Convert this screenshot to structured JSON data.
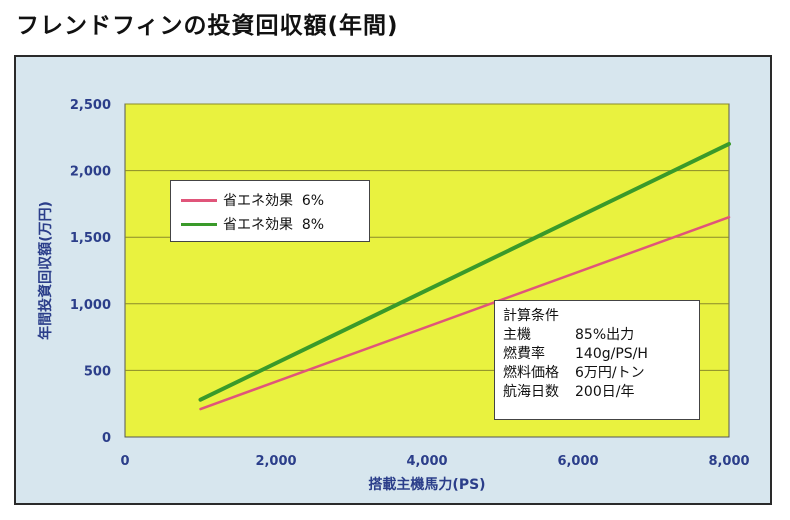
{
  "page": {
    "title": "フレンドフィンの投資回収額(年間)"
  },
  "colors": {
    "plot_background": "#e9f23f",
    "frame_background": "#d7e6ee",
    "gridline": "#8a8a2a",
    "series_6": "#e0557a",
    "series_8": "#3a9a2a",
    "axis_text": "#2b3e8a"
  },
  "chart_data": {
    "type": "line",
    "title": "フレンドフィンの投資回収額(年間)",
    "xlabel": "搭載主機馬力(PS)",
    "ylabel": "年間投資回収額(万円)",
    "xlim": [
      0,
      8000
    ],
    "ylim": [
      0,
      2500
    ],
    "xticks": [
      0,
      2000,
      4000,
      6000,
      8000
    ],
    "xtick_labels": [
      "0",
      "2,000",
      "4,000",
      "6,000",
      "8,000"
    ],
    "yticks": [
      0,
      500,
      1000,
      1500,
      2000,
      2500
    ],
    "ytick_labels": [
      "0",
      "500",
      "1,000",
      "1,500",
      "2,000",
      "2,500"
    ],
    "grid": true,
    "legend_position": "top-left",
    "series": [
      {
        "name": "省エネ効果 6%",
        "color": "#e0557a",
        "x": [
          1000,
          8000
        ],
        "y": [
          210,
          1650
        ]
      },
      {
        "name": "省エネ効果 8%",
        "color": "#3a9a2a",
        "x": [
          1000,
          8000
        ],
        "y": [
          280,
          2200
        ]
      }
    ]
  },
  "legend": {
    "items": [
      {
        "label": "省エネ効果  6%",
        "color": "#e0557a"
      },
      {
        "label": "省エネ効果  8%",
        "color": "#3a9a2a"
      }
    ]
  },
  "conditions": {
    "heading": "計算条件",
    "rows": [
      {
        "label": "主機",
        "value": "85%出力"
      },
      {
        "label": "燃費率",
        "value": "140g/PS/H"
      },
      {
        "label": "燃料価格",
        "value": "6万円/トン"
      },
      {
        "label": "航海日数",
        "value": "200日/年"
      }
    ]
  }
}
